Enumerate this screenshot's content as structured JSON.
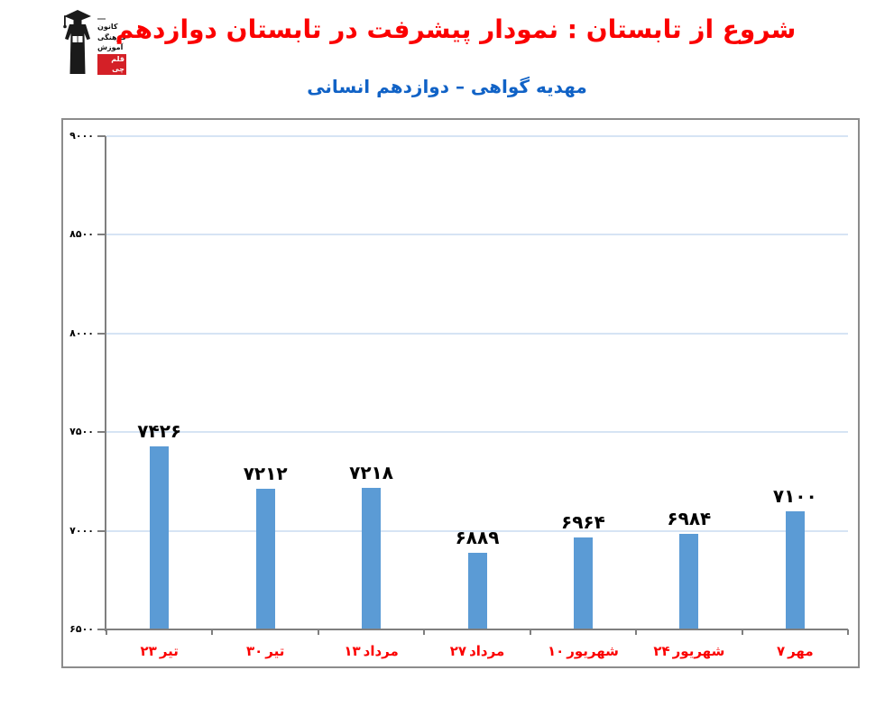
{
  "header": {
    "title": "شروع از تابستان : نمودار پیشرفت در تابستان دوازدهم",
    "subtitle": "مهدیه گواهی – دوازدهم انسانی",
    "title_color": "#fb0000",
    "subtitle_color": "#1062c6"
  },
  "logo": {
    "figure": "graduate-silhouette",
    "line1": "کانون",
    "line2": "فرهنگی",
    "line3": "آموزش",
    "badge": "قلم چی",
    "badge_bg": "#d42027"
  },
  "chart_data": {
    "type": "bar",
    "title": "",
    "xlabel": "",
    "ylabel": "",
    "categories": [
      {
        "day": "۲۳",
        "month": "تیر"
      },
      {
        "day": "۳۰",
        "month": "تیر"
      },
      {
        "day": "۱۳",
        "month": "مرداد"
      },
      {
        "day": "۲۷",
        "month": "مرداد"
      },
      {
        "day": "۱۰",
        "month": "شهریور"
      },
      {
        "day": "۲۴",
        "month": "شهریور"
      },
      {
        "day": "۷",
        "month": "مهر"
      }
    ],
    "values": [
      7426,
      7212,
      7218,
      6889,
      6964,
      6984,
      7100
    ],
    "value_labels": [
      "۷۴۲۶",
      "۷۲۱۲",
      "۷۲۱۸",
      "۶۸۸۹",
      "۶۹۶۴",
      "۶۹۸۴",
      "۷۱۰۰"
    ],
    "ylim": [
      6500,
      9000
    ],
    "ytick_step": 500,
    "ytick_labels": [
      "۶۵۰۰",
      "۷۰۰۰",
      "۷۵۰۰",
      "۸۰۰۰",
      "۸۵۰۰",
      "۹۰۰۰"
    ],
    "grid": true,
    "legend": false,
    "bar_color": "#5b9bd5",
    "grid_color": "#d6e4f4",
    "axis_color": "#7f7f7f",
    "frame_border_color": "#8c8c8c",
    "category_label_color": "#fb0000",
    "value_label_color": "#000000"
  }
}
